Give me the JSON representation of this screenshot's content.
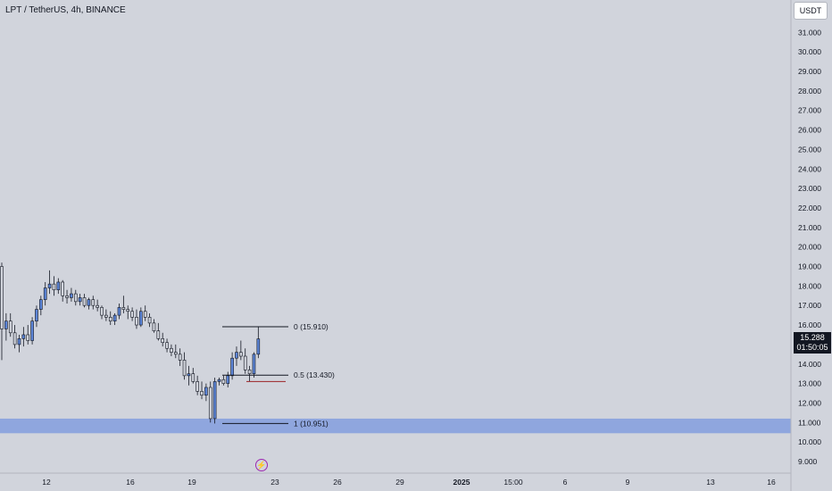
{
  "header": {
    "title": "LPT / TetherUS, 4h, BINANCE"
  },
  "currency": "USDT",
  "price_tag": {
    "price": "15.288",
    "countdown": "01:50:05"
  },
  "event_icon": "lightning-bolt-icon",
  "colors": {
    "background": "#d1d4dc",
    "zone": "#8fa6de",
    "candle_up": "#5b84d6",
    "candle_down": "#d1d4dc",
    "candle_outline": "#131722",
    "fib_line": "#131722",
    "red_line": "#9b2226",
    "event_icon": "#9c27b0"
  },
  "chart_data": {
    "type": "candlestick",
    "symbol": "LPT / TetherUS",
    "interval": "4h",
    "exchange": "BINANCE",
    "currency": "USDT",
    "last_price": 15.288,
    "ylim": [
      8.6,
      32.0
    ],
    "y_ticks": [
      9,
      10,
      11,
      12,
      13,
      14,
      15,
      16,
      17,
      18,
      19,
      20,
      21,
      22,
      23,
      24,
      25,
      26,
      27,
      28,
      29,
      30,
      31
    ],
    "y_tick_labels": [
      "9.000",
      "10.000",
      "11.000",
      "12.000",
      "13.000",
      "14.000",
      "15.000",
      "16.000",
      "17.000",
      "18.000",
      "19.000",
      "20.000",
      "21.000",
      "22.000",
      "23.000",
      "24.000",
      "25.000",
      "26.000",
      "27.000",
      "28.000",
      "29.000",
      "30.000",
      "31.000"
    ],
    "x_tick_labels": [
      "12",
      "16",
      "19",
      "23",
      "26",
      "29",
      "2025",
      "15:00",
      "6",
      "9",
      "13",
      "16"
    ],
    "support_zone": [
      10.45,
      11.2
    ],
    "fib_levels": [
      {
        "ratio": 0,
        "price": 15.91,
        "label": "0 (15.910)"
      },
      {
        "ratio": 0.5,
        "price": 13.43,
        "label": "0.5 (13.430)"
      },
      {
        "ratio": 1,
        "price": 10.951,
        "label": "1 (10.951)"
      }
    ],
    "red_line_price": 13.1,
    "candles": [
      [
        19.0,
        19.2,
        14.2,
        15.8
      ],
      [
        15.8,
        16.6,
        15.2,
        16.2
      ],
      [
        16.2,
        16.6,
        15.4,
        15.6
      ],
      [
        15.6,
        16.0,
        14.8,
        15.0
      ],
      [
        15.0,
        15.5,
        14.6,
        15.3
      ],
      [
        15.3,
        15.9,
        14.9,
        15.5
      ],
      [
        15.5,
        16.0,
        15.0,
        15.2
      ],
      [
        15.2,
        16.4,
        15.0,
        16.2
      ],
      [
        16.2,
        17.0,
        15.9,
        16.8
      ],
      [
        16.8,
        17.5,
        16.5,
        17.3
      ],
      [
        17.3,
        18.2,
        17.0,
        17.9
      ],
      [
        17.9,
        18.8,
        17.6,
        18.1
      ],
      [
        18.1,
        18.5,
        17.5,
        17.8
      ],
      [
        17.8,
        18.4,
        17.6,
        18.2
      ],
      [
        18.2,
        18.3,
        17.2,
        17.5
      ],
      [
        17.5,
        17.8,
        17.1,
        17.4
      ],
      [
        17.4,
        17.9,
        17.2,
        17.6
      ],
      [
        17.6,
        17.8,
        17.0,
        17.2
      ],
      [
        17.2,
        17.6,
        17.0,
        17.4
      ],
      [
        17.4,
        17.6,
        16.9,
        17.0
      ],
      [
        17.0,
        17.4,
        16.8,
        17.3
      ],
      [
        17.3,
        17.5,
        16.8,
        17.0
      ],
      [
        17.0,
        17.3,
        16.7,
        16.9
      ],
      [
        16.9,
        17.0,
        16.3,
        16.5
      ],
      [
        16.5,
        16.8,
        16.2,
        16.4
      ],
      [
        16.4,
        16.7,
        16.0,
        16.2
      ],
      [
        16.2,
        16.6,
        16.0,
        16.5
      ],
      [
        16.5,
        17.1,
        16.3,
        16.9
      ],
      [
        16.9,
        17.5,
        16.6,
        16.8
      ],
      [
        16.8,
        17.0,
        16.3,
        16.7
      ],
      [
        16.7,
        16.9,
        16.2,
        16.4
      ],
      [
        16.4,
        16.8,
        15.8,
        16.0
      ],
      [
        16.0,
        16.9,
        15.9,
        16.7
      ],
      [
        16.7,
        17.0,
        16.2,
        16.4
      ],
      [
        16.4,
        16.6,
        15.9,
        16.1
      ],
      [
        16.1,
        16.3,
        15.6,
        15.7
      ],
      [
        15.7,
        16.1,
        15.2,
        15.3
      ],
      [
        15.3,
        15.6,
        14.9,
        15.1
      ],
      [
        15.1,
        15.3,
        14.6,
        14.8
      ],
      [
        14.8,
        15.0,
        14.4,
        14.6
      ],
      [
        14.6,
        15.0,
        14.3,
        14.5
      ],
      [
        14.5,
        14.8,
        13.9,
        14.2
      ],
      [
        14.2,
        14.6,
        13.2,
        13.4
      ],
      [
        13.4,
        13.9,
        12.9,
        13.5
      ],
      [
        13.5,
        13.8,
        13.0,
        13.1
      ],
      [
        13.1,
        13.4,
        12.4,
        12.6
      ],
      [
        12.6,
        13.1,
        12.2,
        12.4
      ],
      [
        12.4,
        13.0,
        12.1,
        12.8
      ],
      [
        12.8,
        13.1,
        11.0,
        11.2
      ],
      [
        11.2,
        13.3,
        10.95,
        13.1
      ],
      [
        13.1,
        13.3,
        12.9,
        13.2
      ],
      [
        13.2,
        13.4,
        12.9,
        13.0
      ],
      [
        13.0,
        13.6,
        12.8,
        13.4
      ],
      [
        13.4,
        14.6,
        13.2,
        14.3
      ],
      [
        14.3,
        14.9,
        13.9,
        14.6
      ],
      [
        14.6,
        15.2,
        14.2,
        14.4
      ],
      [
        14.4,
        14.8,
        13.5,
        13.7
      ],
      [
        13.7,
        13.9,
        13.1,
        13.5
      ],
      [
        13.5,
        14.6,
        13.3,
        14.5
      ],
      [
        14.5,
        15.91,
        14.3,
        15.288
      ]
    ]
  }
}
